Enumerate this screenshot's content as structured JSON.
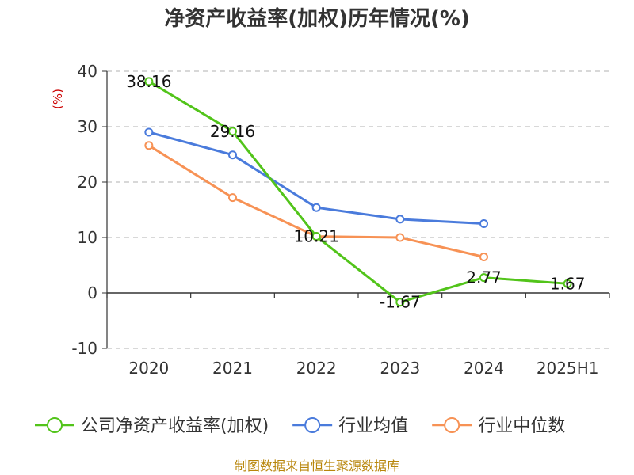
{
  "chart_data": {
    "type": "line",
    "title": "净资产收益率(加权)历年情况(%)",
    "ylabel": "(%)",
    "categories": [
      "2020",
      "2021",
      "2022",
      "2023",
      "2024",
      "2025H1"
    ],
    "ylim": [
      -10,
      40
    ],
    "yticks": [
      "40",
      "30",
      "20",
      "10",
      "0",
      "-10"
    ],
    "grid": true,
    "legend_position": "bottom",
    "series": [
      {
        "name": "公司净资产收益率(加权)",
        "color": "#52c41a",
        "values": [
          38.16,
          29.16,
          10.21,
          -1.67,
          2.77,
          1.67
        ],
        "labels": [
          "38.16",
          "29.16",
          "10.21",
          "-1.67",
          "2.77",
          "1.67"
        ]
      },
      {
        "name": "行业均值",
        "color": "#4a7bdc",
        "values": [
          29.0,
          24.9,
          15.4,
          13.3,
          12.5,
          null
        ]
      },
      {
        "name": "行业中位数",
        "color": "#f79255",
        "values": [
          26.6,
          17.2,
          10.2,
          10.0,
          6.5,
          null
        ]
      }
    ]
  },
  "source": "制图数据来自恒生聚源数据库"
}
